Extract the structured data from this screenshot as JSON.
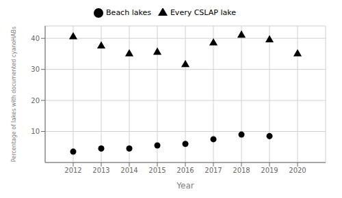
{
  "chart_data": {
    "type": "scatter",
    "x": [
      2012,
      2013,
      2014,
      2015,
      2016,
      2017,
      2018,
      2019,
      2020
    ],
    "series": [
      {
        "name": "Beach lakes",
        "color": "black",
        "marker": "circle",
        "values": [
          3.5,
          4.5,
          4.5,
          5.5,
          6.0,
          7.5,
          9.0,
          8.5,
          null
        ]
      },
      {
        "name": "Every CSLAP lake",
        "color": "black",
        "marker": "triangle",
        "values": [
          40.5,
          37.5,
          35.0,
          35.5,
          31.5,
          38.5,
          41.0,
          39.5,
          35.0
        ]
      }
    ],
    "xlabel": "Year",
    "ylabel": "Percentage of lakes with documented cyanoHABs",
    "xlim": [
      2011,
      2021
    ],
    "xticks": [
      2012,
      2013,
      2014,
      2015,
      2016,
      2017,
      2018,
      2019,
      2020
    ],
    "ylim": [
      0,
      44
    ],
    "yticks": [
      10,
      20,
      30,
      40
    ],
    "grid": true,
    "legend": "top"
  }
}
